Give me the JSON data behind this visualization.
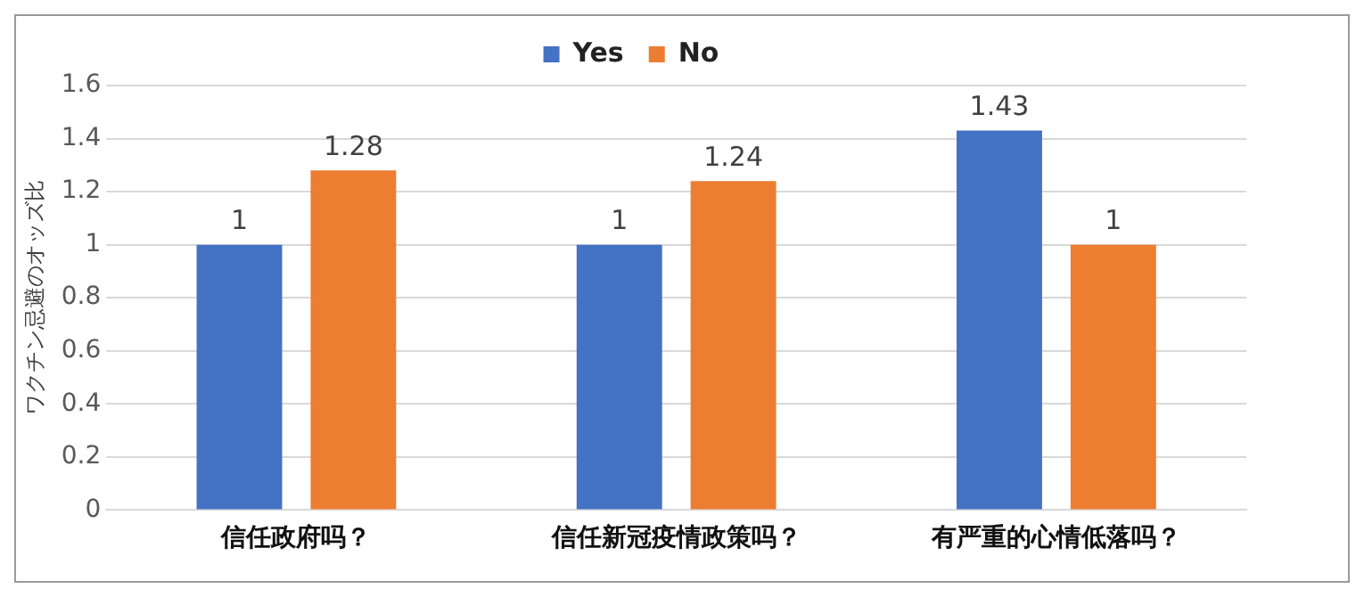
{
  "chart_data": {
    "type": "bar",
    "ylabel": "ワクチン忌避のオッズ比",
    "categories": [
      "信任政府吗？",
      "信任新冠疫情政策吗？",
      "有严重的心情低落吗？"
    ],
    "series": [
      {
        "name": "Yes",
        "color": "#4472c4",
        "values": [
          1,
          1,
          1.43
        ]
      },
      {
        "name": "No",
        "color": "#ed7d31",
        "values": [
          1.28,
          1.24,
          1
        ]
      }
    ],
    "ylim": [
      0,
      1.6
    ],
    "yticks": [
      0,
      {
        "value": 0.2,
        "label": "0.2"
      },
      {
        "value": 0.4,
        "label": "0.4"
      },
      {
        "value": 0.6,
        "label": "0.6"
      },
      {
        "value": 0.8,
        "label": "0.8"
      },
      1,
      {
        "value": 1.2,
        "label": "1.2"
      },
      {
        "value": 1.4,
        "label": "1.4"
      },
      {
        "value": 1.6,
        "label": "1.6"
      }
    ],
    "grid": "y",
    "legend": "top",
    "data_labels": true
  }
}
